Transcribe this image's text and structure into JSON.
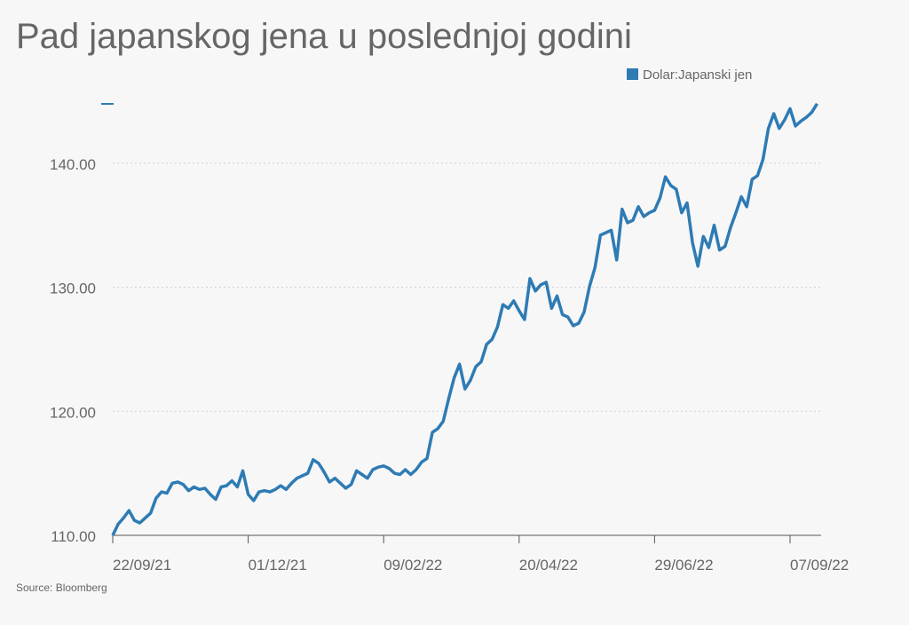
{
  "chart_data": {
    "type": "line",
    "title": "Pad japanskog jena u poslednjoj godini",
    "source": "Source: Bloomberg",
    "categories": [
      "22/09/21",
      null,
      null,
      null,
      null,
      null,
      null,
      null,
      null,
      null,
      null,
      null,
      null,
      null,
      null,
      null,
      null,
      null,
      null,
      null,
      null,
      null,
      null,
      null,
      null,
      "01/12/21",
      null,
      null,
      null,
      null,
      null,
      null,
      null,
      null,
      null,
      null,
      null,
      null,
      null,
      null,
      null,
      null,
      null,
      null,
      null,
      null,
      null,
      null,
      null,
      null,
      "09/02/22",
      null,
      null,
      null,
      null,
      null,
      null,
      null,
      null,
      null,
      null,
      null,
      null,
      null,
      null,
      null,
      null,
      null,
      null,
      null,
      null,
      null,
      null,
      null,
      null,
      "20/04/22",
      null,
      null,
      null,
      null,
      null,
      null,
      null,
      null,
      null,
      null,
      null,
      null,
      null,
      null,
      null,
      null,
      null,
      null,
      null,
      null,
      null,
      null,
      null,
      null,
      "29/06/22",
      null,
      null,
      null,
      null,
      null,
      null,
      null,
      null,
      null,
      null,
      null,
      null,
      null,
      null,
      null,
      null,
      null,
      null,
      null,
      null,
      null,
      null,
      null,
      null,
      "07/09/22",
      null,
      null,
      null,
      null,
      null
    ],
    "series": [
      {
        "name": "Dolar:Japanski jen",
        "color": "#2e7bb4",
        "values": [
          110.0,
          110.9,
          111.4,
          112.0,
          111.2,
          111.0,
          111.4,
          111.8,
          113.0,
          113.5,
          113.4,
          114.2,
          114.3,
          114.1,
          113.6,
          113.9,
          113.7,
          113.8,
          113.3,
          112.9,
          113.9,
          114.0,
          114.4,
          113.9,
          115.2,
          113.3,
          112.8,
          113.5,
          113.6,
          113.5,
          113.7,
          114.0,
          113.7,
          114.2,
          114.6,
          114.8,
          115.0,
          116.1,
          115.8,
          115.1,
          114.3,
          114.6,
          114.2,
          113.8,
          114.1,
          115.2,
          114.9,
          114.6,
          115.3,
          115.5,
          115.6,
          115.4,
          115.0,
          114.9,
          115.3,
          114.9,
          115.3,
          115.9,
          116.2,
          118.3,
          118.6,
          119.2,
          121.0,
          122.7,
          123.8,
          121.8,
          122.5,
          123.6,
          124.0,
          125.4,
          125.8,
          126.8,
          128.6,
          128.3,
          128.9,
          128.1,
          127.4,
          130.7,
          129.7,
          130.2,
          130.4,
          128.3,
          129.3,
          127.8,
          127.6,
          126.9,
          127.1,
          128.0,
          130.1,
          131.6,
          134.2,
          134.4,
          134.6,
          132.2,
          136.3,
          135.2,
          135.4,
          136.5,
          135.7,
          136.0,
          136.2,
          137.2,
          138.9,
          138.2,
          137.9,
          136.0,
          136.8,
          133.6,
          131.7,
          134.1,
          133.2,
          135.0,
          133.0,
          133.3,
          134.8,
          136.0,
          137.3,
          136.5,
          138.7,
          139.0,
          140.3,
          142.8,
          144.0,
          142.8,
          143.5,
          144.4,
          143.0,
          143.4,
          143.7,
          144.1,
          144.8
        ]
      }
    ],
    "ylim": [
      110,
      145
    ],
    "yticks": [
      {
        "value": 110,
        "label": "110.00"
      },
      {
        "value": 120,
        "label": "120.00"
      },
      {
        "value": 130,
        "label": "130.00"
      },
      {
        "value": 140,
        "label": "140.00"
      }
    ],
    "grid": true,
    "legend": "top-right"
  }
}
